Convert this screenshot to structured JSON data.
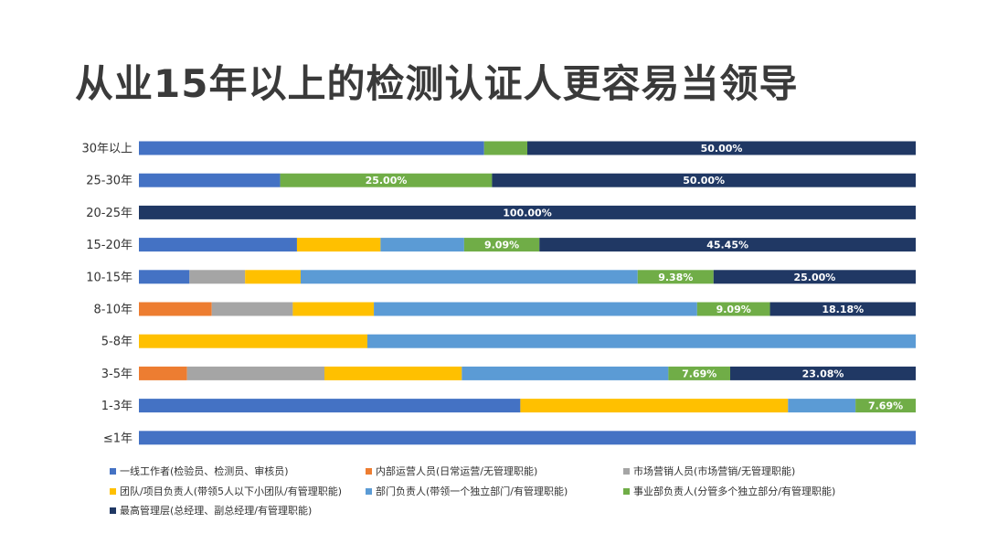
{
  "title": "从业15年以上的检测认证人更容易当领导",
  "chart_data": {
    "type": "bar",
    "stacked": "100%",
    "orientation": "horizontal",
    "categories": [
      "30年以上",
      "25-30年",
      "20-25年",
      "15-20年",
      "10-15年",
      "8-10年",
      "5-8年",
      "3-5年",
      "1-3年",
      "≤1年"
    ],
    "series": [
      {
        "name": "一线工作者(检验员、检测员、审核员)",
        "color": "#4472C4",
        "values": [
          44.44,
          16.67,
          0,
          19.09,
          6.25,
          0,
          0,
          0,
          48.72,
          100
        ]
      },
      {
        "name": "内部运营人员(日常运营/无管理职能)",
        "color": "#ED7D31",
        "values": [
          0,
          0,
          0,
          0,
          0,
          9.09,
          0,
          5.99,
          0,
          0
        ]
      },
      {
        "name": "市场营销人员(市场营销/无管理职能)",
        "color": "#A5A5A5",
        "values": [
          0,
          0,
          0,
          0,
          6.88,
          10.11,
          0,
          17.09,
          0,
          0
        ]
      },
      {
        "name": "团队/项目负责人(带领5人以下小团队/有管理职能)",
        "color": "#FFC000",
        "values": [
          0,
          0,
          0,
          10.09,
          6.87,
          10.11,
          29.41,
          17.09,
          34.19,
          0
        ]
      },
      {
        "name": "部门负责人(带领一个独立部门/有管理职能)",
        "color": "#5B9BD5",
        "values": [
          0,
          0,
          0,
          10.1,
          41.68,
          40.33,
          70.59,
          25.7,
          8.62,
          0
        ]
      },
      {
        "name": "事业部负责人(分管多个独立部分/有管理职能)",
        "color": "#70AD47",
        "values": [
          5.56,
          25,
          0,
          9.09,
          9.38,
          9.09,
          0,
          7.69,
          7.69,
          0
        ]
      },
      {
        "name": "最高管理层(总经理、副总经理/有管理职能)",
        "color": "#203864",
        "values": [
          50,
          50,
          100,
          45.45,
          25,
          18.18,
          0,
          23.08,
          0,
          0
        ]
      }
    ],
    "data_labels": [
      {
        "category": "30年以上",
        "series": "最高管理层(总经理、副总经理/有管理职能)",
        "text": "50.00%"
      },
      {
        "category": "25-30年",
        "series": "事业部负责人(分管多个独立部分/有管理职能)",
        "text": "25.00%"
      },
      {
        "category": "25-30年",
        "series": "最高管理层(总经理、副总经理/有管理职能)",
        "text": "50.00%"
      },
      {
        "category": "20-25年",
        "series": "最高管理层(总经理、副总经理/有管理职能)",
        "text": "100.00%"
      },
      {
        "category": "15-20年",
        "series": "事业部负责人(分管多个独立部分/有管理职能)",
        "text": "9.09%"
      },
      {
        "category": "15-20年",
        "series": "最高管理层(总经理、副总经理/有管理职能)",
        "text": "45.45%"
      },
      {
        "category": "10-15年",
        "series": "事业部负责人(分管多个独立部分/有管理职能)",
        "text": "9.38%"
      },
      {
        "category": "10-15年",
        "series": "最高管理层(总经理、副总经理/有管理职能)",
        "text": "25.00%"
      },
      {
        "category": "8-10年",
        "series": "事业部负责人(分管多个独立部分/有管理职能)",
        "text": "9.09%"
      },
      {
        "category": "8-10年",
        "series": "最高管理层(总经理、副总经理/有管理职能)",
        "text": "18.18%"
      },
      {
        "category": "3-5年",
        "series": "事业部负责人(分管多个独立部分/有管理职能)",
        "text": "7.69%"
      },
      {
        "category": "3-5年",
        "series": "最高管理层(总经理、副总经理/有管理职能)",
        "text": "23.08%"
      },
      {
        "category": "1-3年",
        "series": "事业部负责人(分管多个独立部分/有管理职能)",
        "text": "7.69%"
      }
    ],
    "xlim": [
      0,
      100
    ],
    "grid": false,
    "legend_position": "bottom"
  }
}
